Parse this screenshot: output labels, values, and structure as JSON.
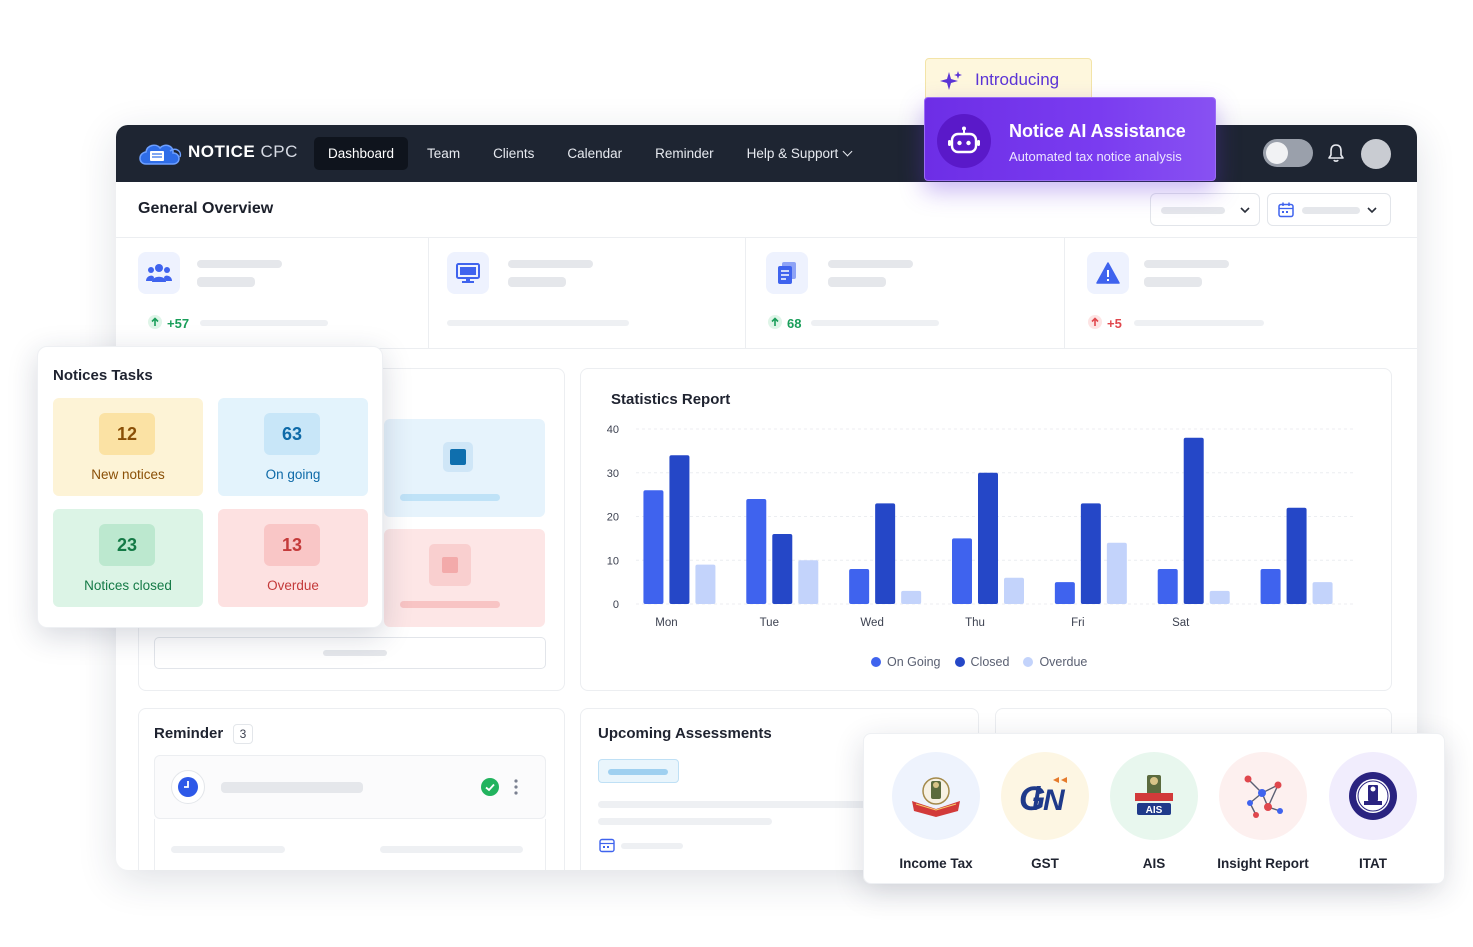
{
  "nav": {
    "logo": {
      "brand": "NOTICE",
      "suffix": "CPC"
    },
    "items": [
      {
        "label": "Dashboard",
        "active": true
      },
      {
        "label": "Team"
      },
      {
        "label": "Clients"
      },
      {
        "label": "Calendar"
      },
      {
        "label": "Reminder"
      },
      {
        "label": "Help & Support"
      }
    ]
  },
  "ai_banner": {
    "intro": "Introducing",
    "title": "Notice AI Assistance",
    "subtitle": "Automated tax notice analysis"
  },
  "overview": {
    "title": "General Overview",
    "stats": [
      {
        "icon": "users-icon",
        "delta": "+57",
        "trend": "up"
      },
      {
        "icon": "monitor-icon",
        "delta": "",
        "trend": ""
      },
      {
        "icon": "clipboard-icon",
        "delta": "68",
        "trend": "up"
      },
      {
        "icon": "alert-icon",
        "delta": "+5",
        "trend": "up-red"
      }
    ]
  },
  "tasks": {
    "title": "Notices Tasks",
    "tiles": [
      {
        "value": "12",
        "label": "New notices"
      },
      {
        "value": "63",
        "label": "On going"
      },
      {
        "value": "23",
        "label": "Notices closed"
      },
      {
        "value": "13",
        "label": "Overdue"
      }
    ]
  },
  "chart_data": {
    "type": "bar",
    "title": "Statistics Report",
    "categories": [
      "Mon",
      "Tue",
      "Wed",
      "Thu",
      "Fri",
      "Sat",
      ""
    ],
    "series": [
      {
        "name": "On Going",
        "color": "#3f63ee",
        "values": [
          26,
          24,
          8,
          15,
          5,
          8,
          8
        ]
      },
      {
        "name": "Closed",
        "color": "#2547c7",
        "values": [
          34,
          16,
          23,
          30,
          23,
          38,
          22
        ]
      },
      {
        "name": "Overdue",
        "color": "#c3d3fb",
        "values": [
          9,
          10,
          3,
          6,
          14,
          3,
          5
        ]
      }
    ],
    "ylim": [
      0,
      40
    ],
    "yticks": [
      0,
      10,
      20,
      30,
      40
    ],
    "legend": "bottom",
    "grid": true
  },
  "reminder": {
    "title": "Reminder",
    "count": "3"
  },
  "upcoming": {
    "title": "Upcoming Assessments"
  },
  "services": [
    {
      "label": "Income Tax",
      "icon": "income-tax-emblem-icon",
      "bg": "#eef3fd"
    },
    {
      "label": "GST",
      "icon": "gst-logo-icon",
      "bg": "#fdf6e3"
    },
    {
      "label": "AIS",
      "icon": "ais-emblem-icon",
      "bg": "#e8f7ee"
    },
    {
      "label": "Insight Report",
      "icon": "network-graph-icon",
      "bg": "#fdf0ef"
    },
    {
      "label": "ITAT",
      "icon": "itat-seal-icon",
      "bg": "#f1edfd"
    }
  ]
}
